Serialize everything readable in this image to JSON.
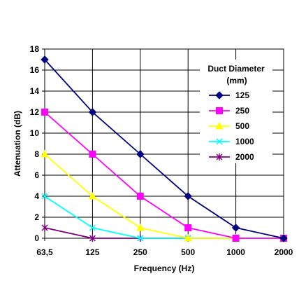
{
  "chart_data": {
    "type": "line",
    "title": "",
    "xlabel": "Frequency (Hz)",
    "ylabel": "Attenuation (dB)",
    "categories": [
      "63,5",
      "125",
      "250",
      "500",
      "1000",
      "2000"
    ],
    "ylim": [
      0,
      18
    ],
    "yticks": [
      0,
      2,
      4,
      6,
      8,
      10,
      12,
      14,
      16,
      18
    ],
    "grid": true,
    "legend": {
      "title_line1": "Duct Diameter",
      "title_line2": "(mm)",
      "placement": "top-right"
    },
    "series": [
      {
        "name": "125",
        "color": "#000080",
        "marker": "diamond",
        "values": [
          17,
          12,
          8,
          4,
          1,
          0
        ]
      },
      {
        "name": "250",
        "color": "#FF00FF",
        "marker": "square",
        "values": [
          12,
          8,
          4,
          1,
          0,
          0
        ]
      },
      {
        "name": "500",
        "color": "#FFFF00",
        "marker": "triangle",
        "values": [
          8,
          4,
          1,
          0,
          0,
          0
        ]
      },
      {
        "name": "1000",
        "color": "#00FFFF",
        "marker": "x",
        "values": [
          4,
          1,
          0,
          0,
          0,
          0
        ]
      },
      {
        "name": "2000",
        "color": "#800080",
        "marker": "star",
        "values": [
          1,
          0,
          0,
          0,
          0,
          0
        ]
      }
    ]
  }
}
